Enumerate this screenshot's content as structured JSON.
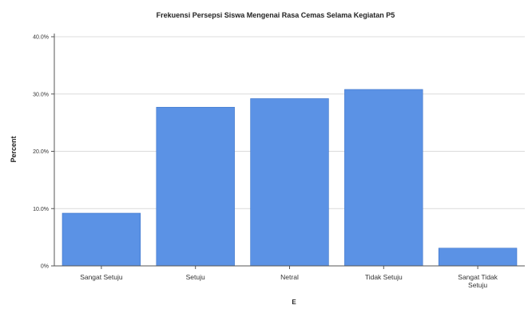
{
  "chart_data": {
    "type": "bar",
    "title": "Frekuensi Persepsi Siswa Mengenai Rasa Cemas Selama Kegiatan P5",
    "xlabel": "E",
    "ylabel": "Percent",
    "categories": [
      "Sangat Setuju",
      "Setuju",
      "Netral",
      "Tidak Setuju",
      "Sangat Tidak Setuju"
    ],
    "values": [
      9.2,
      27.7,
      29.2,
      30.8,
      3.1
    ],
    "ylim": [
      0,
      40
    ],
    "yticks": [
      0,
      10,
      20,
      30,
      40
    ],
    "ytick_labels": [
      "0%",
      "10.0%",
      "20.0%",
      "30.0%",
      "40.0%"
    ],
    "grid": true,
    "bar_color": "#5b92e5"
  }
}
